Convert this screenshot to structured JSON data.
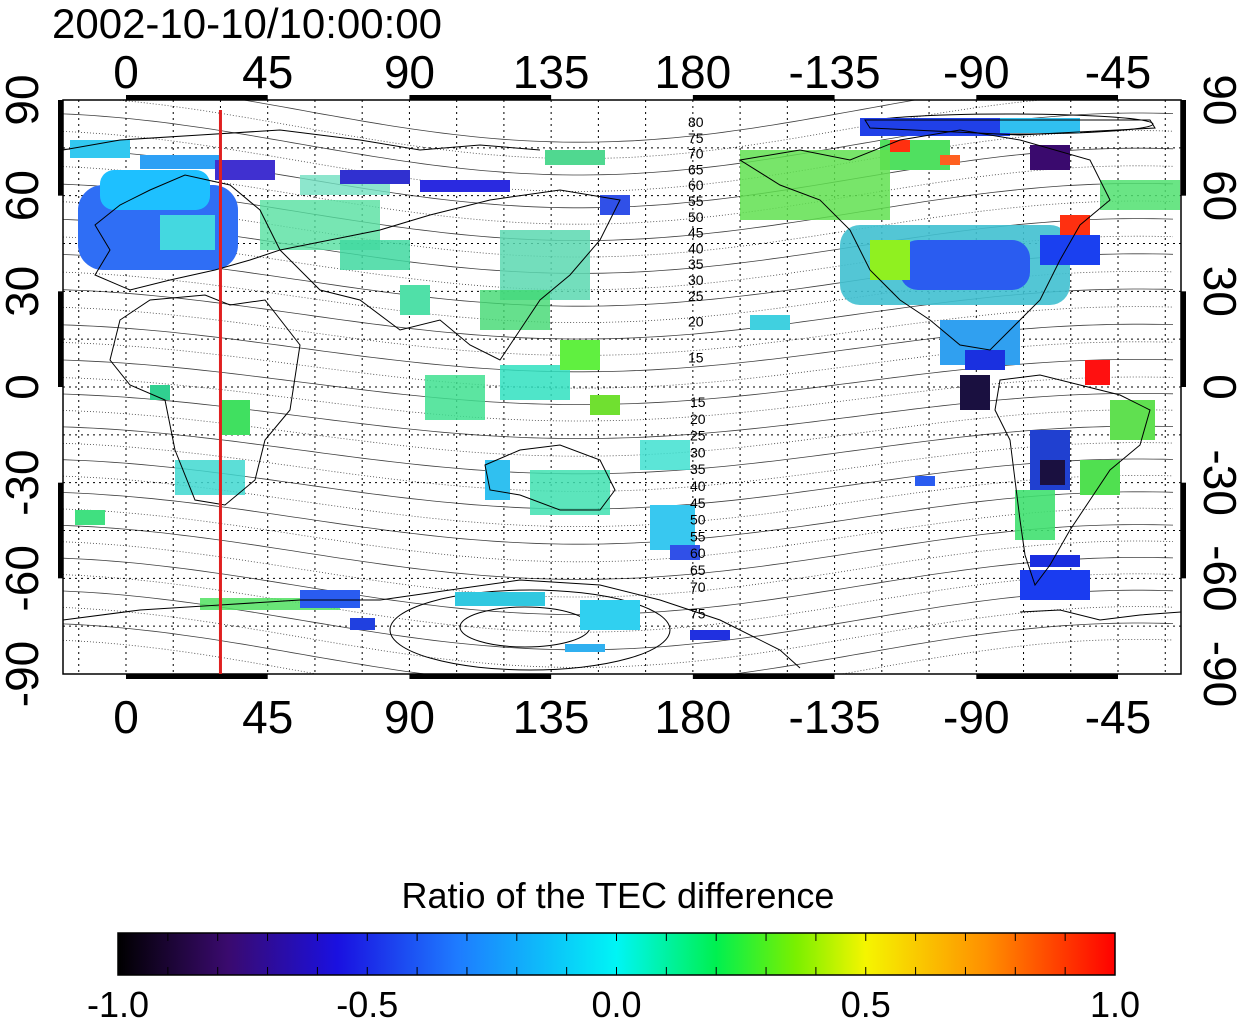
{
  "title": "2002-10-10/10:00:00",
  "map": {
    "projection": "equirectangular",
    "lon_ticks": [
      0,
      45,
      90,
      135,
      180,
      -135,
      -90,
      -45
    ],
    "lon_tick_labels": [
      "0",
      "45",
      "90",
      "135",
      "180",
      "-135",
      "-90",
      "-45"
    ],
    "lat_ticks": [
      90,
      60,
      30,
      0,
      -30,
      -60,
      -90
    ],
    "lat_tick_labels": [
      "90",
      "60",
      "30",
      "0",
      "-30",
      "-60",
      "-90"
    ],
    "lon_range": [
      -20,
      335
    ],
    "lat_range": [
      -90,
      90
    ],
    "grid": "dotted",
    "meridian_marker": {
      "lon": 30,
      "color": "#e02020"
    },
    "magnetic_latitude_labels_north": [
      "80",
      "75",
      "70",
      "65",
      "60",
      "55",
      "50",
      "45",
      "40",
      "35",
      "30",
      "25",
      "20",
      "15"
    ],
    "magnetic_latitude_labels_south": [
      "15",
      "20",
      "25",
      "30",
      "35",
      "40",
      "45",
      "50",
      "55",
      "60",
      "65",
      "70",
      "75"
    ]
  },
  "colorbar": {
    "title": "Ratio of the TEC difference",
    "min": -1.0,
    "max": 1.0,
    "tick_labels": [
      "-1.0",
      "-0.5",
      "0.0",
      "0.5",
      "1.0"
    ],
    "colormap": [
      "#000000",
      "#3a0a6e",
      "#1a10e0",
      "#1e7bff",
      "#00f5f5",
      "#00f050",
      "#7af000",
      "#f5f500",
      "#ff9000",
      "#ff0000"
    ]
  }
}
